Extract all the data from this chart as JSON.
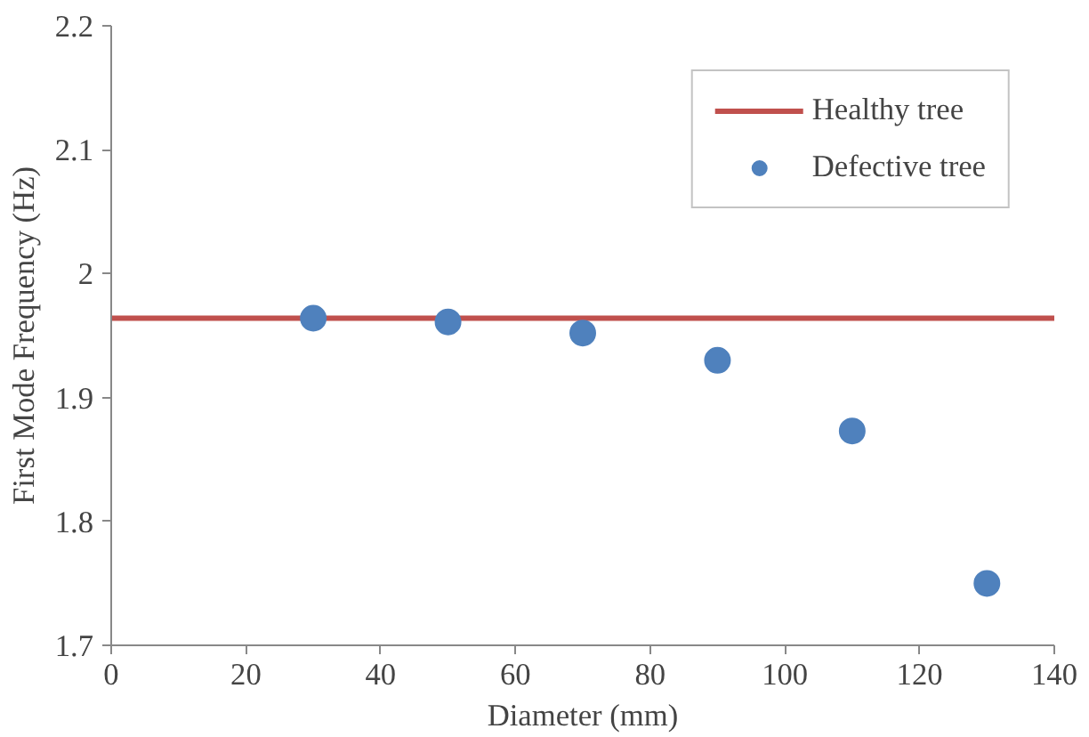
{
  "chart_data": {
    "type": "scatter",
    "xlabel": "Diameter (mm)",
    "ylabel": "First Mode Frequency (Hz)",
    "xlim": [
      0,
      140
    ],
    "xticks": [
      0,
      20,
      40,
      60,
      80,
      100,
      120,
      140
    ],
    "ylim": [
      1.7,
      2.2
    ],
    "yticks": [
      1.7,
      1.8,
      1.9,
      2,
      2.1,
      2.2
    ],
    "grid": false,
    "legend": "top right",
    "series": [
      {
        "name": "Healthy tree",
        "type": "line",
        "color": "#c0504d",
        "x": [
          0,
          140
        ],
        "values": [
          1.964,
          1.964
        ]
      },
      {
        "name": "Defective tree",
        "marker": "circle",
        "color": "#4f81bd",
        "x": [
          30,
          50,
          70,
          90,
          110,
          130
        ],
        "values": [
          1.964,
          1.961,
          1.952,
          1.93,
          1.873,
          1.75
        ]
      }
    ]
  }
}
